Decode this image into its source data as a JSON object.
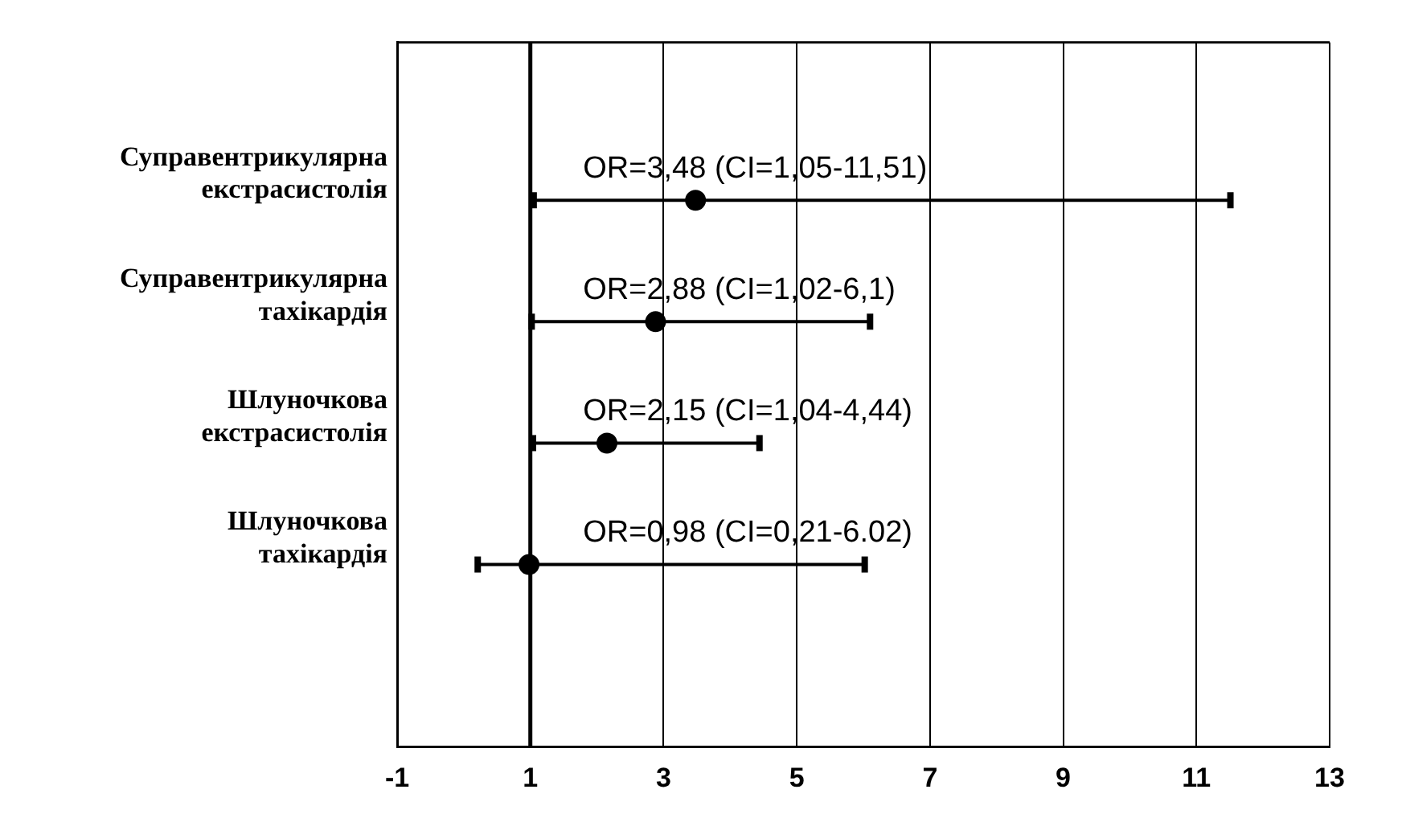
{
  "chart_data": {
    "type": "scatter",
    "orientation": "horizontal",
    "categories": [
      "Суправентрикулярна екстрасистолія",
      "Суправентрикулярна тахікардія",
      "Шлуночкова екстрасистолія",
      "Шлуночкова тахікардія"
    ],
    "values": [
      3.48,
      2.88,
      2.15,
      0.98
    ],
    "errors": [
      [
        1.05,
        11.51
      ],
      [
        1.02,
        6.1
      ],
      [
        1.04,
        4.44
      ],
      [
        0.21,
        6.02
      ]
    ],
    "value_labels": [
      "OR=3,48 (CI=1,05-11,51)",
      "OR=2,88 (CI=1,02-6,1)",
      "OR=2,15 (CI=1,04-4,44)",
      "OR=0,98 (CI=0,21-6.02)"
    ],
    "color": "#000000",
    "marker": "circle",
    "xlim": [
      -1,
      13
    ],
    "xticks": [
      -1,
      1,
      3,
      5,
      7,
      9,
      11,
      13
    ],
    "ref_lines": [
      {
        "axis": "x",
        "value": 1
      }
    ],
    "grid": "x",
    "legend": false
  }
}
